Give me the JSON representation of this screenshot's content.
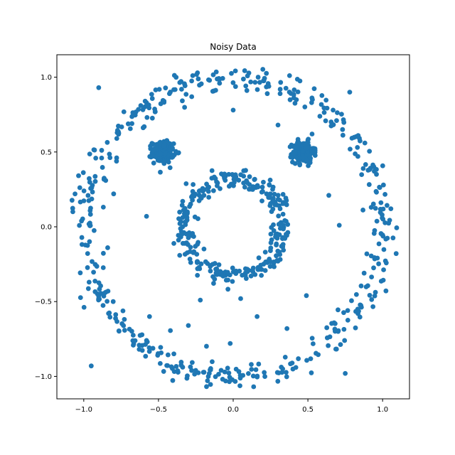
{
  "chart_data": {
    "type": "scatter",
    "title": "Noisy Data",
    "xlabel": "",
    "ylabel": "",
    "xlim": [
      -1.18,
      1.18
    ],
    "ylim": [
      -1.15,
      1.15
    ],
    "xticks": [
      -1.0,
      -0.5,
      0.0,
      0.5,
      1.0
    ],
    "xtick_labels": [
      "−1.0",
      "−0.5",
      "0.0",
      "0.5",
      "1.0"
    ],
    "yticks": [
      -1.0,
      -0.5,
      0.0,
      0.5,
      1.0
    ],
    "ytick_labels": [
      "−1.0",
      "−0.5",
      "0.0",
      "0.5",
      "1.0"
    ],
    "grid": false,
    "marker_color": "#1f77b4",
    "series": [
      {
        "clusters": [
          {
            "shape": "ring",
            "center": [
              0,
              0
            ],
            "radius": 1.0,
            "noise": 0.045,
            "count": 460
          },
          {
            "shape": "ring",
            "center": [
              0,
              0
            ],
            "radius": 0.33,
            "noise": 0.035,
            "count": 300
          },
          {
            "shape": "blob",
            "center": [
              -0.47,
              0.5
            ],
            "spread": 0.035,
            "count": 180
          },
          {
            "shape": "blob",
            "center": [
              0.47,
              0.5
            ],
            "spread": 0.035,
            "count": 180
          }
        ],
        "outliers": [
          {
            "x": -0.9,
            "y": 0.93
          },
          {
            "x": 0.0,
            "y": 0.78
          },
          {
            "x": 0.78,
            "y": 0.9
          },
          {
            "x": 0.3,
            "y": 0.68
          },
          {
            "x": -0.8,
            "y": 0.22
          },
          {
            "x": -0.58,
            "y": 0.07
          },
          {
            "x": 0.64,
            "y": 0.21
          },
          {
            "x": 0.71,
            "y": 0.01
          },
          {
            "x": -0.84,
            "y": -0.14
          },
          {
            "x": 0.49,
            "y": -0.46
          },
          {
            "x": -0.56,
            "y": -0.6
          },
          {
            "x": -0.22,
            "y": -0.49
          },
          {
            "x": -0.3,
            "y": -0.66
          },
          {
            "x": 0.05,
            "y": -0.48
          },
          {
            "x": 0.16,
            "y": -0.6
          },
          {
            "x": 0.36,
            "y": -0.68
          },
          {
            "x": -0.02,
            "y": -0.78
          },
          {
            "x": 0.75,
            "y": -0.98
          },
          {
            "x": -0.95,
            "y": -0.93
          }
        ]
      }
    ]
  }
}
